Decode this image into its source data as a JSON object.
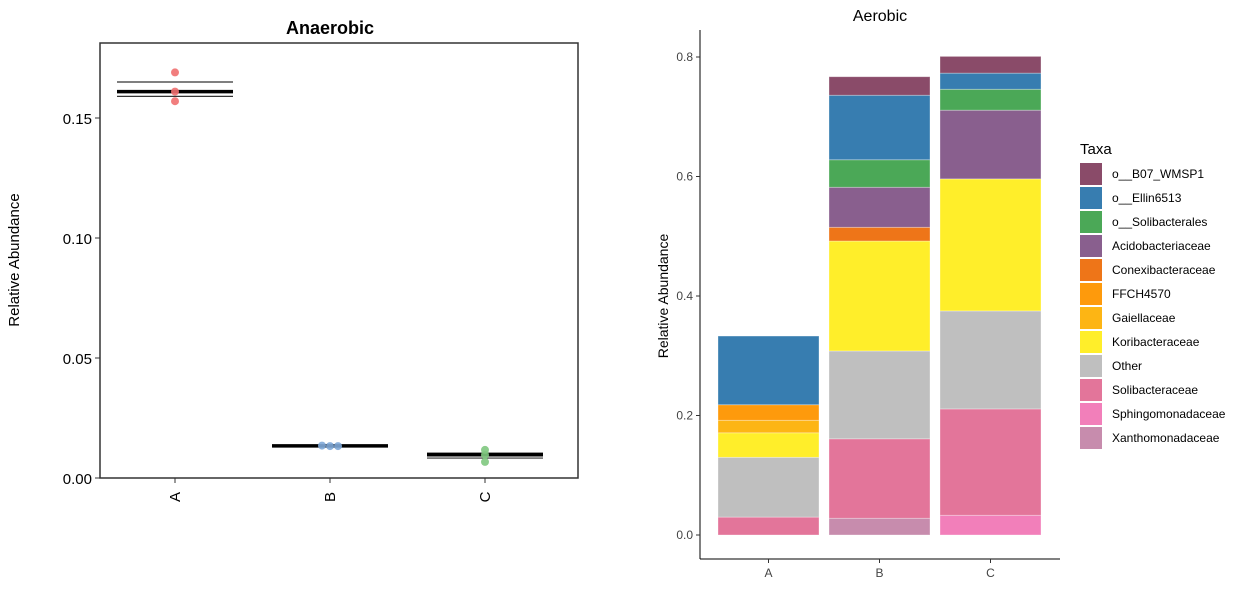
{
  "chart_data": [
    {
      "type": "scatter",
      "title": "Anaerobic",
      "xlabel": "",
      "ylabel": "Relative Abundance",
      "categories": [
        "A",
        "B",
        "C"
      ],
      "ylim": [
        0,
        0.181
      ],
      "yticks": [
        0,
        0.05,
        0.1,
        0.15
      ],
      "ytick_labels": [
        "0.00",
        "0.05",
        "0.10",
        "0.15"
      ],
      "grid": false,
      "points": [
        {
          "group": "A",
          "values": [
            0.169,
            0.161,
            0.157
          ],
          "color": "#F07070"
        },
        {
          "group": "B",
          "values": [
            0.0135,
            0.0133,
            0.0133
          ],
          "color": "#7FA8D8"
        },
        {
          "group": "C",
          "values": [
            0.0117,
            0.0096,
            0.0067
          ],
          "color": "#80C880"
        }
      ],
      "summary_lines": [
        {
          "group": "A",
          "mean": 0.161,
          "upper": 0.165,
          "lower": 0.159
        },
        {
          "group": "B",
          "mean": 0.0134,
          "upper": 0.0135,
          "lower": 0.0133
        },
        {
          "group": "C",
          "mean": 0.0097,
          "upper": 0.0104,
          "lower": 0.0083
        }
      ]
    },
    {
      "type": "bar",
      "stacked": true,
      "title": "Aerobic",
      "xlabel": "",
      "ylabel": "Relative Abundance",
      "categories": [
        "A",
        "B",
        "C"
      ],
      "ylim": [
        0,
        0.84
      ],
      "yticks": [
        0,
        0.2,
        0.4,
        0.6,
        0.8
      ],
      "ytick_labels": [
        "0.0",
        "0.2",
        "0.4",
        "0.6",
        "0.8"
      ],
      "grid": false,
      "legend": {
        "title": "Taxa",
        "placement": "right"
      },
      "series": [
        {
          "name": "Xanthomonadaceae",
          "color": "#C78CAD",
          "values": [
            0,
            0.028,
            0
          ]
        },
        {
          "name": "Sphingomonadaceae",
          "color": "#F27FBA",
          "values": [
            0,
            0,
            0.033
          ]
        },
        {
          "name": "Solibacteraceae",
          "color": "#E3759A",
          "values": [
            0.03,
            0.133,
            0.178
          ]
        },
        {
          "name": "Other",
          "color": "#BFBFBF",
          "values": [
            0.1,
            0.147,
            0.164
          ]
        },
        {
          "name": "Koribacteraceae",
          "color": "#FFEE2A",
          "values": [
            0.041,
            0.184,
            0.221
          ]
        },
        {
          "name": "Gaiellaceae",
          "color": "#FDB514",
          "values": [
            0.021,
            0,
            0
          ]
        },
        {
          "name": "FFCH4570",
          "color": "#FE9A0C",
          "values": [
            0.026,
            0,
            0
          ]
        },
        {
          "name": "Conexibacteraceae",
          "color": "#EE7518",
          "values": [
            0,
            0.023,
            0
          ]
        },
        {
          "name": "Acidobacteriaceae",
          "color": "#895F8E",
          "values": [
            0,
            0.067,
            0.115
          ]
        },
        {
          "name": "o__Solibacterales",
          "color": "#4BA857",
          "values": [
            0,
            0.046,
            0.035
          ]
        },
        {
          "name": "o__Ellin6513",
          "color": "#377DB0",
          "values": [
            0.115,
            0.108,
            0.027
          ]
        },
        {
          "name": "o__B07_WMSP1",
          "color": "#8A4B69",
          "values": [
            0,
            0.031,
            0.028
          ]
        }
      ]
    }
  ]
}
